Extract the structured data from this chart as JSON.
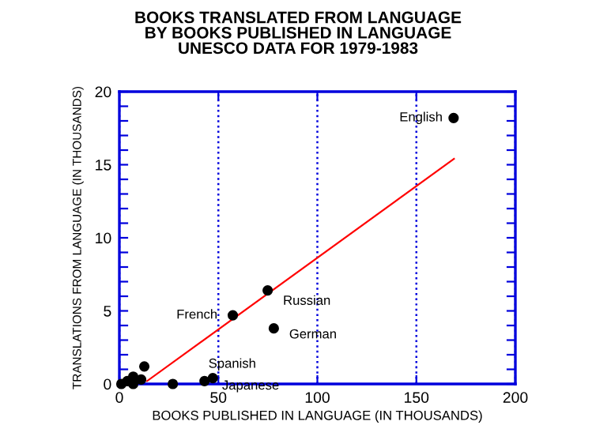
{
  "chart_data": {
    "type": "scatter",
    "title": "BOOKS TRANSLATED FROM LANGUAGE\nBY BOOKS PUBLISHED IN LANGUAGE\nUNESCO DATA FOR 1979-1983",
    "xlabel": "BOOKS PUBLISHED IN LANGUAGE (IN THOUSANDS)",
    "ylabel": "TRANSLATIONS FROM LANGUAGE (IN THOUSANDS)",
    "series": [
      {
        "color": "#000000",
        "marker": "circle",
        "x": [
          168.8,
          74.9,
          57.3,
          78,
          47.2,
          43,
          27,
          12.6,
          7,
          11,
          1,
          4,
          7
        ],
        "values": [
          18.2,
          6.4,
          4.7,
          3.8,
          0.4,
          0.2,
          0,
          1.2,
          0.5,
          0.3,
          0,
          0.2,
          0
        ]
      },
      {
        "type": "line",
        "color": "#ff0000",
        "x": [
          14,
          169
        ],
        "values": [
          0.2,
          15.4
        ]
      }
    ],
    "annotations": [
      {
        "text": "English",
        "x": 168.8,
        "y": 18.2
      },
      {
        "text": "Russian",
        "x": 74.9,
        "y": 6.4
      },
      {
        "text": "French",
        "x": 57.3,
        "y": 4.7
      },
      {
        "text": "German",
        "x": 78,
        "y": 3.8
      },
      {
        "text": "Spanish",
        "x": 47.2,
        "y": 0.44
      },
      {
        "text": "Japanese",
        "x": 43,
        "y": 0.15
      }
    ],
    "xlim": [
      0,
      200
    ],
    "ylim": [
      0,
      20
    ],
    "xticks": [
      0,
      50,
      100,
      150,
      200
    ],
    "yticks": [
      0,
      {
        "value": 1,
        "label": null
      },
      {
        "value": 2,
        "label": null
      },
      {
        "value": 3,
        "label": null
      },
      {
        "value": 4,
        "label": null
      },
      5,
      {
        "value": 6,
        "label": null
      },
      {
        "value": 7,
        "label": null
      },
      {
        "value": 8,
        "label": null
      },
      {
        "value": 9,
        "label": null
      },
      10,
      {
        "value": 11,
        "label": null
      },
      {
        "value": 12,
        "label": null
      },
      {
        "value": 13,
        "label": null
      },
      {
        "value": 14,
        "label": null
      },
      15,
      {
        "value": 16,
        "label": null
      },
      {
        "value": 17,
        "label": null
      },
      {
        "value": 18,
        "label": null
      },
      {
        "value": 19,
        "label": null
      },
      20
    ],
    "grid": "x"
  }
}
